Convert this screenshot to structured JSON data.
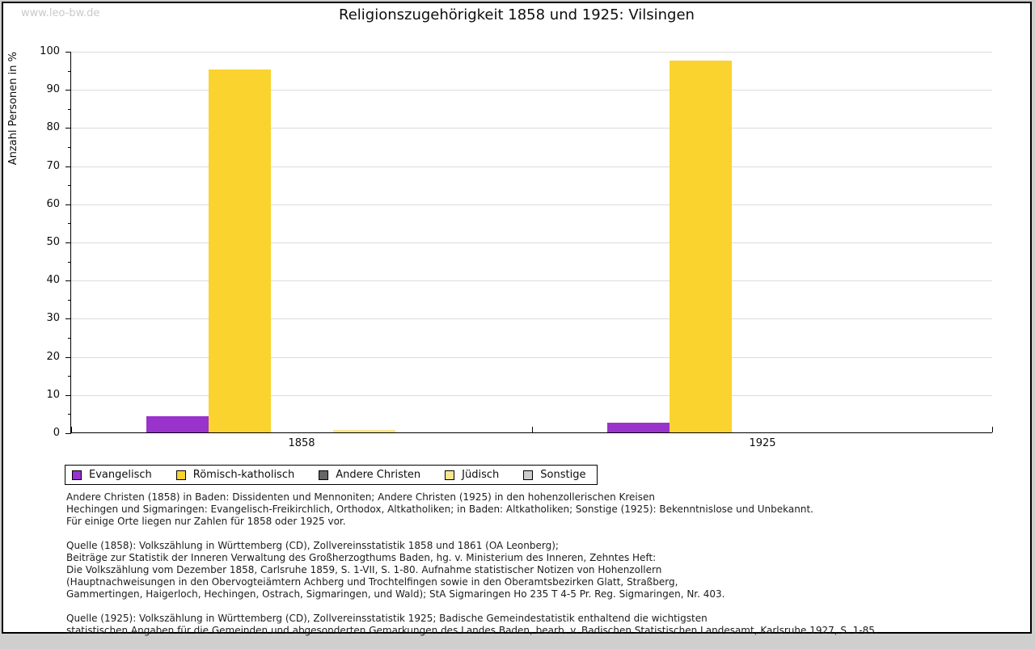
{
  "page": {
    "watermark": "www.leo-bw.de"
  },
  "chart_data": {
    "type": "bar",
    "title": "Religionszugehörigkeit 1858 und 1925: Vilsingen",
    "xlabel": "",
    "ylabel": "Anzahl Personen in %",
    "ylim": [
      0,
      100
    ],
    "ytick_step": 10,
    "ytick_minor_step": 5,
    "grid": true,
    "gridline_color": "#dcdcdc",
    "legend_position": "bottom",
    "categories": [
      "1858",
      "1925"
    ],
    "series": [
      {
        "name": "Evangelisch",
        "color": "#9933CC",
        "values": [
          4.2,
          2.5
        ]
      },
      {
        "name": "Römisch-katholisch",
        "color": "#FAD32F",
        "values": [
          95.1,
          97.5
        ]
      },
      {
        "name": "Andere Christen",
        "color": "#666666",
        "values": [
          0,
          0
        ]
      },
      {
        "name": "Jüdisch",
        "color": "#FAE58C",
        "values": [
          0.7,
          0
        ]
      },
      {
        "name": "Sonstige",
        "color": "#CCCCCC",
        "values": [
          0,
          0
        ]
      }
    ]
  },
  "footnotes": [
    "Andere Christen (1858) in Baden: Dissidenten und Mennoniten; Andere Christen (1925) in den hohenzollerischen Kreisen\nHechingen und Sigmaringen: Evangelisch-Freikirchlich, Orthodox, Altkatholiken; in Baden: Altkatholiken; Sonstige (1925): Bekenntnislose und Unbekannt.\nFür einige Orte liegen nur Zahlen für 1858 oder 1925 vor.",
    "Quelle (1858): Volkszählung in Württemberg (CD), Zollvereinsstatistik 1858 und 1861 (OA Leonberg);\nBeiträge zur Statistik der Inneren Verwaltung des Großherzogthums Baden, hg. v. Ministerium des Inneren, Zehntes Heft:\nDie Volkszählung vom Dezember 1858, Carlsruhe 1859, S. 1-VII, S. 1-80. Aufnahme statistischer Notizen von Hohenzollern\n(Hauptnachweisungen in den Obervogteiämtern Achberg und Trochtelfingen sowie in den Oberamtsbezirken Glatt, Straßberg,\nGammertingen, Haigerloch, Hechingen, Ostrach, Sigmaringen, und Wald); StA Sigmaringen Ho 235 T 4-5 Pr. Reg. Sigmaringen, Nr. 403.",
    "Quelle (1925): Volkszählung in Württemberg (CD), Zollvereinsstatistik 1925; Badische Gemeindestatistik enthaltend die wichtigsten\nstatistischen Angaben für die Gemeinden und abgesonderten Gemarkungen des Landes Baden, bearb. v. Badischen Statistischen Landesamt, Karlsruhe 1927, S. 1-85."
  ]
}
